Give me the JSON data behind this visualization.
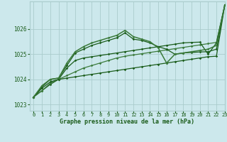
{
  "background_color": "#cce8ec",
  "grid_color": "#aacccc",
  "line_color_dark": "#1a5c1a",
  "line_color_light": "#3a7a3a",
  "title": "Graphe pression niveau de la mer (hPa)",
  "xlim": [
    -0.5,
    23
  ],
  "ylim": [
    1022.75,
    1027.1
  ],
  "yticks": [
    1023,
    1024,
    1025,
    1026
  ],
  "xticks": [
    0,
    1,
    2,
    3,
    4,
    5,
    6,
    7,
    8,
    9,
    10,
    11,
    12,
    13,
    14,
    15,
    16,
    17,
    18,
    19,
    20,
    21,
    22,
    23
  ],
  "series": [
    {
      "x": [
        0,
        1,
        2,
        3,
        4,
        5,
        6,
        7,
        8,
        9,
        10,
        11,
        12,
        13,
        14,
        15,
        16,
        17,
        18,
        19,
        20,
        21,
        22,
        23
      ],
      "y": [
        1023.3,
        1023.55,
        1023.8,
        1024.0,
        1024.05,
        1024.1,
        1024.15,
        1024.2,
        1024.25,
        1024.3,
        1024.35,
        1024.4,
        1024.45,
        1024.5,
        1024.55,
        1024.6,
        1024.65,
        1024.7,
        1024.75,
        1024.8,
        1024.85,
        1024.9,
        1024.92,
        1026.95
      ],
      "color": "#1a5c1a",
      "lw": 0.9
    },
    {
      "x": [
        0,
        1,
        2,
        3,
        4,
        5,
        6,
        7,
        8,
        9,
        10,
        11,
        12,
        13,
        14,
        15,
        16,
        17,
        18,
        19,
        20,
        21,
        22,
        23
      ],
      "y": [
        1023.3,
        1023.55,
        1023.85,
        1024.0,
        1024.15,
        1024.3,
        1024.45,
        1024.55,
        1024.65,
        1024.75,
        1024.85,
        1024.92,
        1024.97,
        1025.02,
        1025.07,
        1025.12,
        1025.17,
        1025.22,
        1025.27,
        1025.32,
        1025.37,
        1025.42,
        1025.47,
        1026.95
      ],
      "color": "#3a7a3a",
      "lw": 0.9
    },
    {
      "x": [
        0,
        1,
        2,
        3,
        4,
        5,
        6,
        7,
        8,
        9,
        10,
        11,
        12,
        13,
        14,
        15,
        16,
        17,
        18,
        19,
        20,
        21,
        22,
        23
      ],
      "y": [
        1023.3,
        1023.65,
        1023.9,
        1024.0,
        1024.45,
        1024.75,
        1024.85,
        1024.9,
        1024.95,
        1025.0,
        1025.05,
        1025.1,
        1025.15,
        1025.2,
        1025.25,
        1025.3,
        1025.35,
        1025.4,
        1025.45,
        1025.47,
        1025.48,
        1025.0,
        1025.45,
        1026.95
      ],
      "color": "#1a5c1a",
      "lw": 0.9
    },
    {
      "x": [
        0,
        1,
        2,
        3,
        4,
        5,
        6,
        7,
        8,
        9,
        10,
        11,
        12,
        13,
        14,
        15,
        16,
        17,
        18,
        19,
        20,
        21,
        22,
        23
      ],
      "y": [
        1023.3,
        1023.7,
        1024.0,
        1024.05,
        1024.55,
        1025.05,
        1025.2,
        1025.35,
        1025.45,
        1025.55,
        1025.65,
        1025.85,
        1025.6,
        1025.55,
        1025.45,
        1025.3,
        1025.2,
        1025.0,
        1025.05,
        1025.07,
        1025.09,
        1025.1,
        1025.2,
        1026.95
      ],
      "color": "#1a5c1a",
      "lw": 0.9
    },
    {
      "x": [
        0,
        1,
        2,
        3,
        4,
        5,
        6,
        7,
        8,
        9,
        10,
        11,
        12,
        13,
        14,
        15,
        16,
        17,
        18,
        19,
        20,
        21,
        22,
        23
      ],
      "y": [
        1023.3,
        1023.75,
        1024.0,
        1024.05,
        1024.65,
        1025.1,
        1025.3,
        1025.45,
        1025.55,
        1025.65,
        1025.75,
        1025.95,
        1025.7,
        1025.6,
        1025.5,
        1025.25,
        1024.65,
        1025.0,
        1025.05,
        1025.1,
        1025.15,
        1025.2,
        1025.35,
        1026.95
      ],
      "color": "#3a7a3a",
      "lw": 1.1
    }
  ]
}
